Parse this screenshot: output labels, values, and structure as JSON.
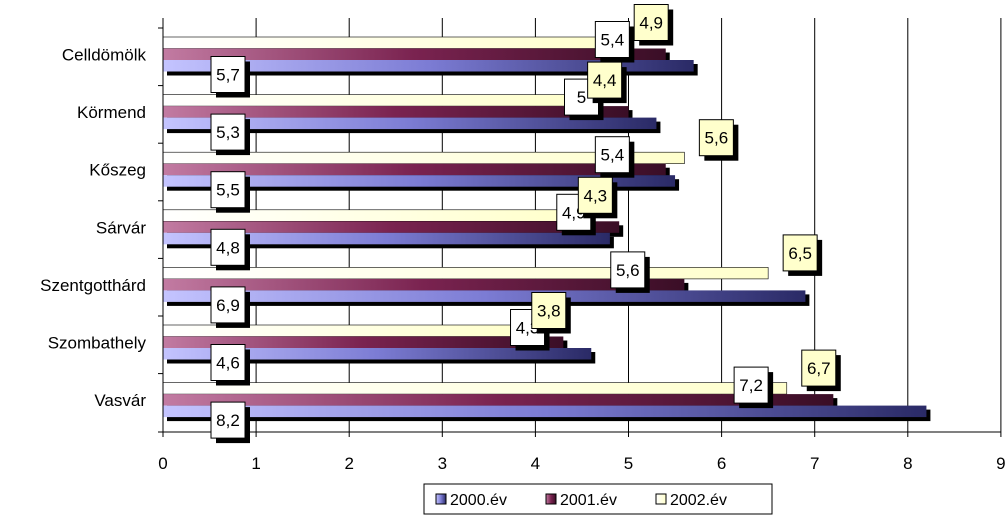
{
  "chart_data": {
    "type": "bar",
    "orientation": "horizontal",
    "title": "",
    "xlabel": "",
    "ylabel": "",
    "categories": [
      "Celldömölk",
      "Körmend",
      "Kőszeg",
      "Sárvár",
      "Szentgotthárd",
      "Szombathely",
      "Vasvár"
    ],
    "series": [
      {
        "name": "2000.év",
        "color": "#8a8ae0",
        "labels": [
          "5,7",
          "5,3",
          "5,5",
          "4,8",
          "6,9",
          "4,6",
          "8,2"
        ],
        "values": [
          5.7,
          5.3,
          5.5,
          4.8,
          6.9,
          4.6,
          8.2
        ]
      },
      {
        "name": "2001.év",
        "color": "#8a2a5e",
        "labels": [
          "5,4",
          "5",
          "5,4",
          "4,9",
          "5,6",
          "4,3",
          "7,2"
        ],
        "values": [
          5.4,
          5.0,
          5.4,
          4.9,
          5.6,
          4.3,
          7.2
        ]
      },
      {
        "name": "2002.év",
        "color": "#ffffcc",
        "labels": [
          "4,9",
          "4,4",
          "5,6",
          "4,3",
          "6,5",
          "3,8",
          "6,7"
        ],
        "values": [
          4.9,
          4.4,
          5.6,
          4.3,
          6.5,
          3.8,
          6.7
        ]
      }
    ],
    "xlim": [
      0,
      9
    ],
    "xticks": [
      "0",
      "1",
      "2",
      "3",
      "4",
      "5",
      "6",
      "7",
      "8",
      "9"
    ],
    "grid": "vertical",
    "legend_position": "bottom"
  }
}
